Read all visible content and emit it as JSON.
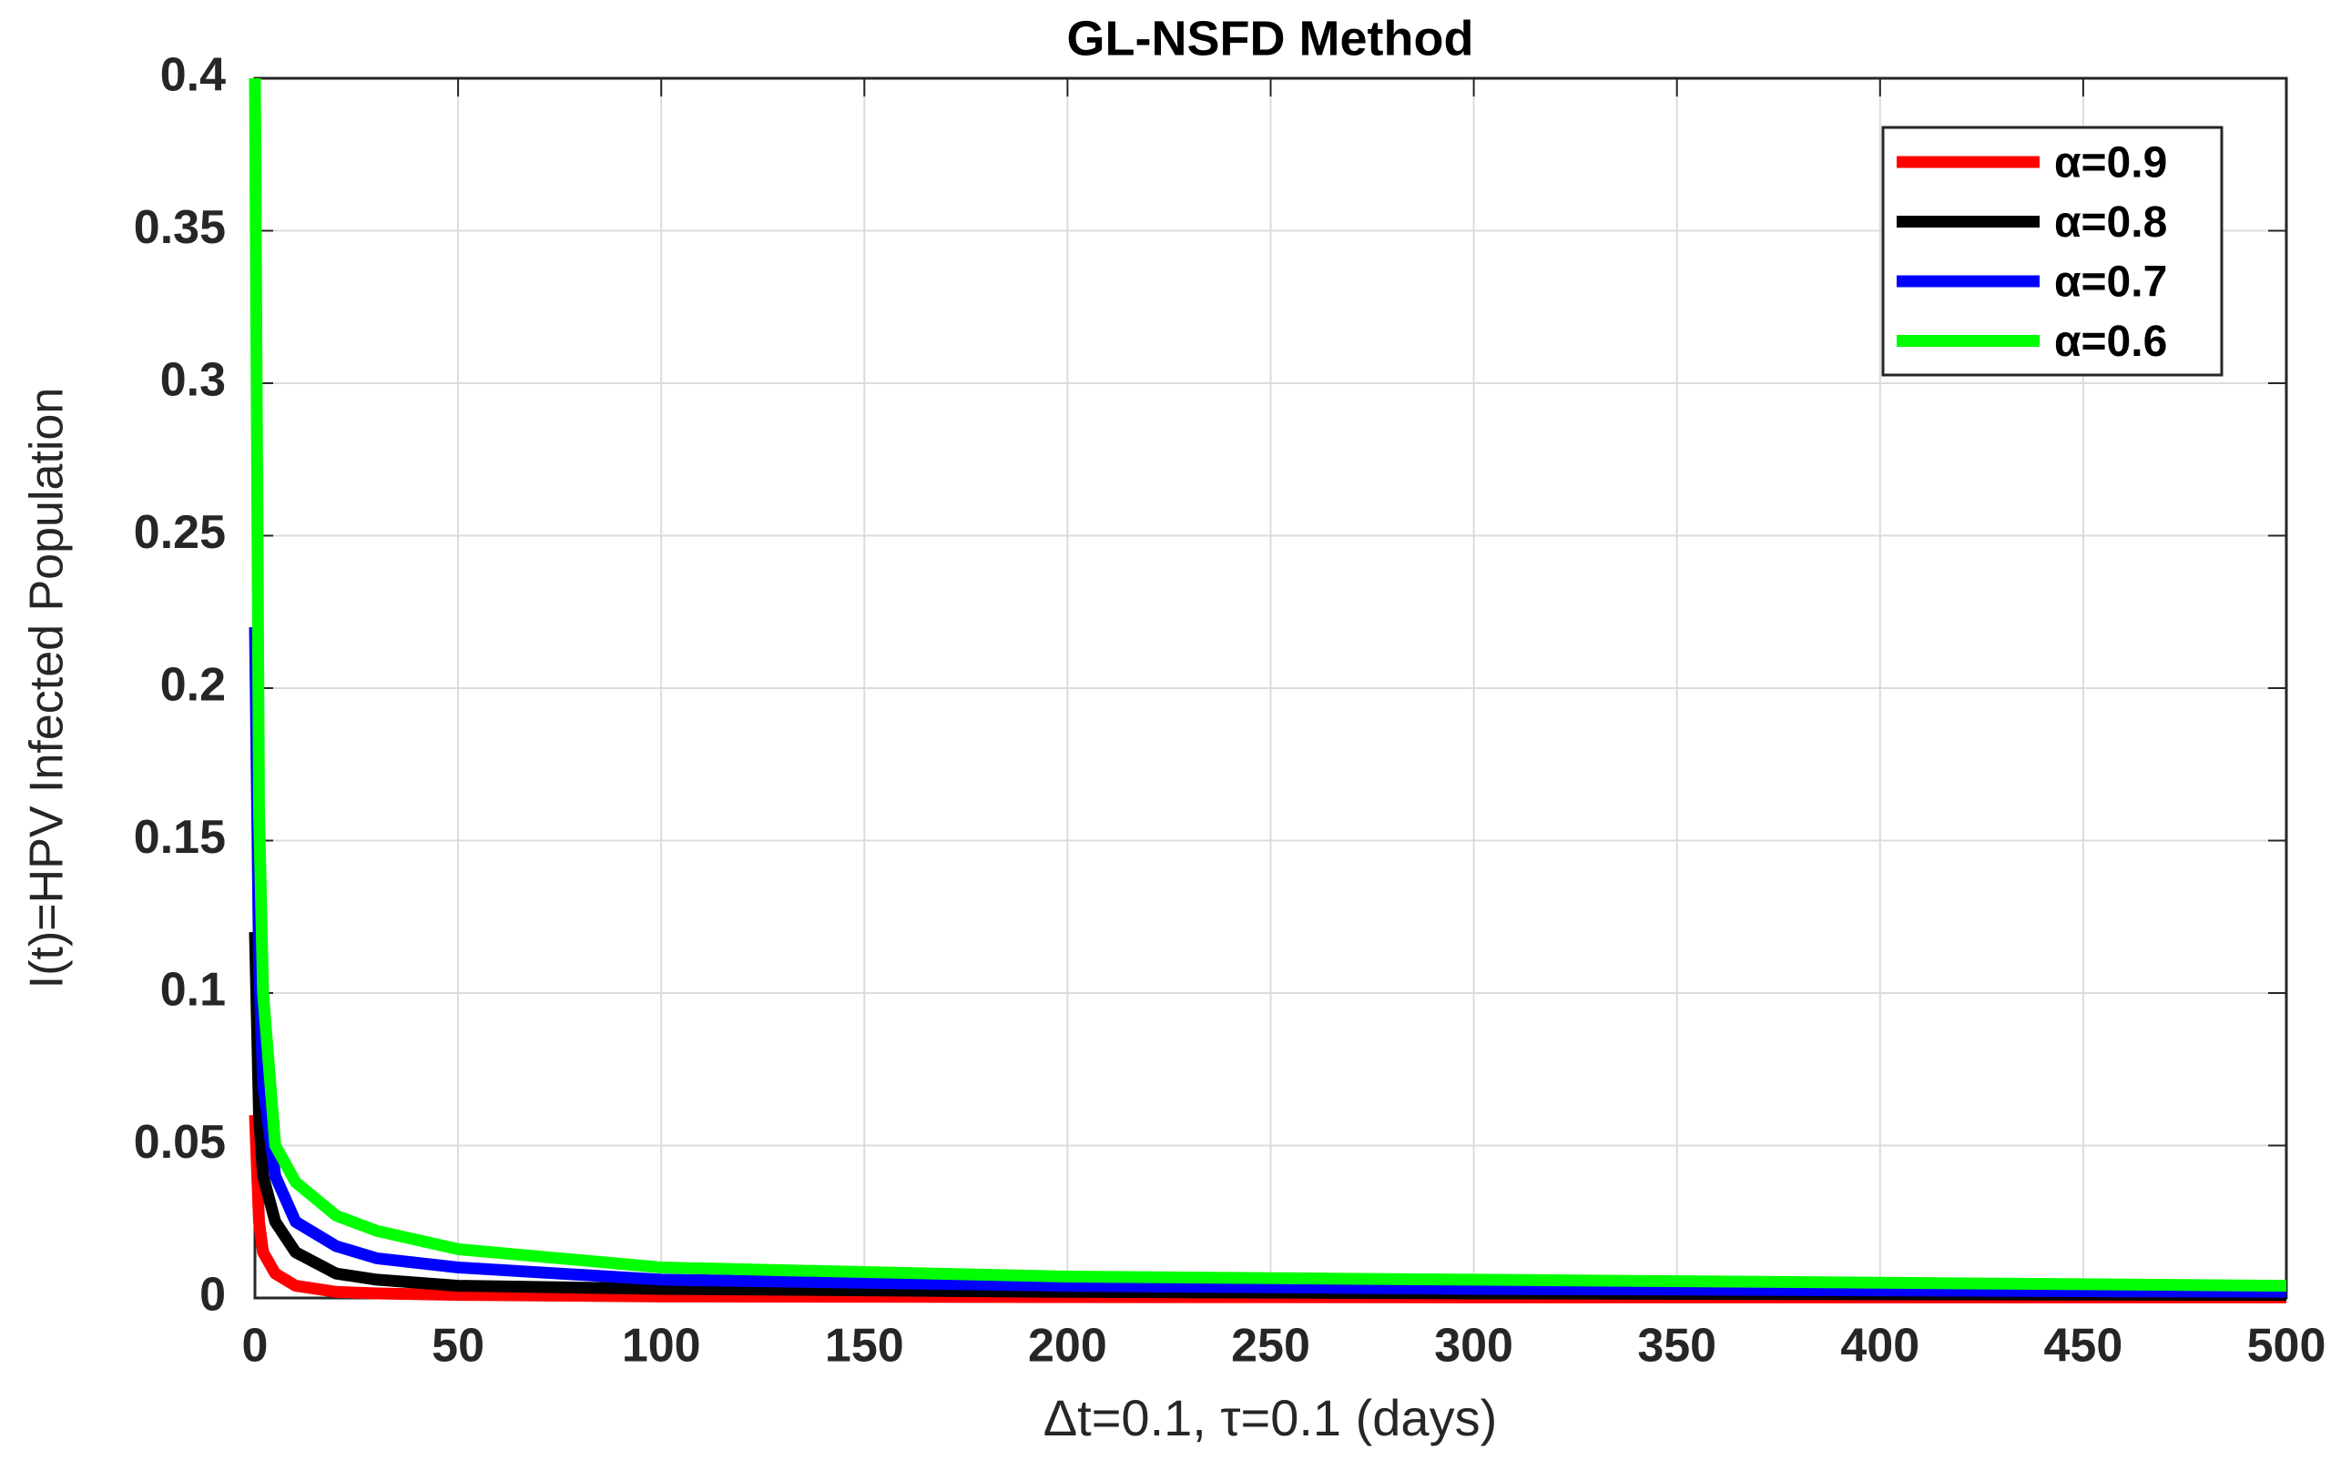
{
  "chart_data": {
    "type": "line",
    "title": "GL-NSFD Method",
    "x_label": "Δt=0.1, τ=0.1 (days)",
    "y_label": "I(t)=HPV Infected Population",
    "x": [
      0,
      1,
      2,
      5,
      10,
      20,
      30,
      50,
      100,
      200,
      300,
      400,
      500
    ],
    "series": [
      {
        "name": "α=0.9",
        "color": "#ff0000",
        "values": [
          0.06,
          0.025,
          0.015,
          0.008,
          0.004,
          0.002,
          0.0015,
          0.001,
          0.0005,
          0.0003,
          0.0002,
          0.0002,
          0.0002
        ]
      },
      {
        "name": "α=0.8",
        "color": "#000000",
        "values": [
          0.12,
          0.06,
          0.04,
          0.025,
          0.015,
          0.008,
          0.006,
          0.004,
          0.003,
          0.002,
          0.0015,
          0.0012,
          0.001
        ]
      },
      {
        "name": "α=0.7",
        "color": "#0000ff",
        "values": [
          0.22,
          0.11,
          0.07,
          0.04,
          0.025,
          0.017,
          0.013,
          0.01,
          0.006,
          0.004,
          0.003,
          0.0025,
          0.002
        ]
      },
      {
        "name": "α=0.6",
        "color": "#00ff00",
        "values": [
          0.4,
          0.16,
          0.1,
          0.05,
          0.038,
          0.027,
          0.022,
          0.016,
          0.01,
          0.007,
          0.006,
          0.005,
          0.004
        ]
      }
    ],
    "xlim": [
      0,
      500
    ],
    "xticks": [
      0,
      50,
      100,
      150,
      200,
      250,
      300,
      350,
      400,
      450,
      500
    ],
    "ylim": [
      0,
      0.4
    ],
    "yticks": [
      0,
      0.05,
      0.1,
      0.15,
      0.2,
      0.25,
      0.3,
      0.35,
      0.4
    ],
    "grid": true,
    "legend": "top-right"
  }
}
